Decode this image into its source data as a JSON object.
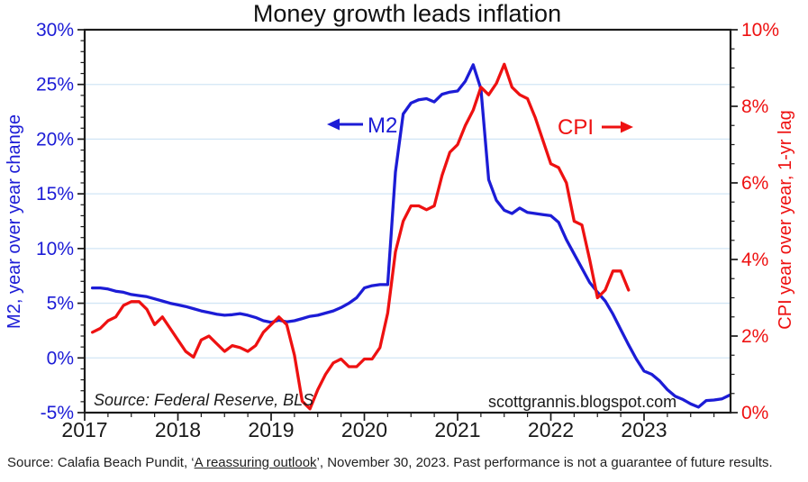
{
  "header": {
    "title": "Money growth leads inflation"
  },
  "chart_data": {
    "type": "line",
    "title": "Money growth leads inflation",
    "x_axis": {
      "tick_labels": [
        "2017",
        "2018",
        "2019",
        "2020",
        "2021",
        "2022",
        "2023"
      ],
      "minor_tick_interval_years": 0.25,
      "range_start": "2017-01",
      "range_end": "2023-12"
    },
    "left_axis": {
      "label": "M2, year over year change",
      "color": "#1c1cd6",
      "min": -5,
      "max": 30,
      "major_tick_step": 5,
      "minor_tick_step": 1,
      "tick_labels": [
        "30%",
        "25%",
        "20%",
        "15%",
        "10%",
        "5%",
        "0%",
        "-5%"
      ]
    },
    "right_axis": {
      "label": "CPI year over year, 1-yr lag",
      "color": "#ee1111",
      "min": 0,
      "max": 10,
      "major_tick_step": 2,
      "minor_tick_step": 0.5,
      "tick_labels": [
        "10%",
        "8%",
        "6%",
        "4%",
        "2%",
        "0%"
      ]
    },
    "grid": {
      "horizontal": true,
      "color": "#d2e6f5",
      "at_left_axis_values": [
        25,
        20,
        15,
        10,
        5,
        0
      ]
    },
    "series": [
      {
        "name": "M2",
        "axis": "left",
        "color": "#1c1cd6",
        "start_month": "2017-01",
        "unit": "% year over year",
        "values": [
          6.4,
          6.4,
          6.3,
          6.1,
          6.0,
          5.8,
          5.7,
          5.6,
          5.4,
          5.2,
          5.0,
          4.85,
          4.7,
          4.5,
          4.3,
          4.15,
          4.0,
          3.9,
          3.95,
          4.05,
          3.9,
          3.7,
          3.4,
          3.25,
          3.45,
          3.3,
          3.4,
          3.6,
          3.8,
          3.9,
          4.1,
          4.3,
          4.6,
          5.0,
          5.5,
          6.4,
          6.6,
          6.7,
          6.7,
          17.0,
          22.3,
          23.3,
          23.6,
          23.7,
          23.4,
          24.1,
          24.3,
          24.4,
          25.3,
          26.8,
          24.6,
          16.3,
          14.4,
          13.5,
          13.2,
          13.7,
          13.3,
          13.2,
          13.1,
          13.0,
          12.4,
          10.8,
          9.5,
          8.2,
          6.9,
          6.0,
          5.2,
          4.0,
          2.6,
          1.2,
          -0.1,
          -1.2,
          -1.5,
          -2.1,
          -2.9,
          -3.5,
          -3.8,
          -4.2,
          -4.5,
          -3.9,
          -3.85,
          -3.75,
          -3.4
        ]
      },
      {
        "name": "CPI",
        "axis": "right",
        "color": "#ee1111",
        "start_month": "2017-01",
        "unit": "% year over year, plotted with 1-yr lag",
        "values": [
          2.1,
          2.2,
          2.4,
          2.5,
          2.8,
          2.9,
          2.9,
          2.7,
          2.3,
          2.5,
          2.2,
          1.9,
          1.6,
          1.45,
          1.9,
          2.0,
          1.8,
          1.6,
          1.75,
          1.7,
          1.6,
          1.75,
          2.1,
          2.3,
          2.5,
          2.3,
          1.5,
          0.3,
          0.1,
          0.6,
          1.0,
          1.3,
          1.4,
          1.2,
          1.2,
          1.4,
          1.4,
          1.7,
          2.6,
          4.2,
          5.0,
          5.4,
          5.4,
          5.3,
          5.4,
          6.2,
          6.8,
          7.0,
          7.5,
          7.9,
          8.5,
          8.3,
          8.6,
          9.1,
          8.5,
          8.3,
          8.2,
          7.7,
          7.1,
          6.5,
          6.4,
          6.0,
          5.0,
          4.9,
          4.0,
          3.0,
          3.2,
          3.7,
          3.7,
          3.2
        ]
      }
    ],
    "annotations": {
      "m2_label": "M2",
      "cpi_label": "CPI"
    },
    "inplot_source": "Source: Federal Reserve, BLS",
    "watermark": "scottgrannis.blogspot.com",
    "legend_position": "in-plot annotations"
  },
  "caption": {
    "prefix": "Source: Calafia Beach Pundit, ‘",
    "link_text": "A reassuring outlook",
    "suffix": "’, November 30, 2023. Past performance is not a guarantee of future results."
  }
}
